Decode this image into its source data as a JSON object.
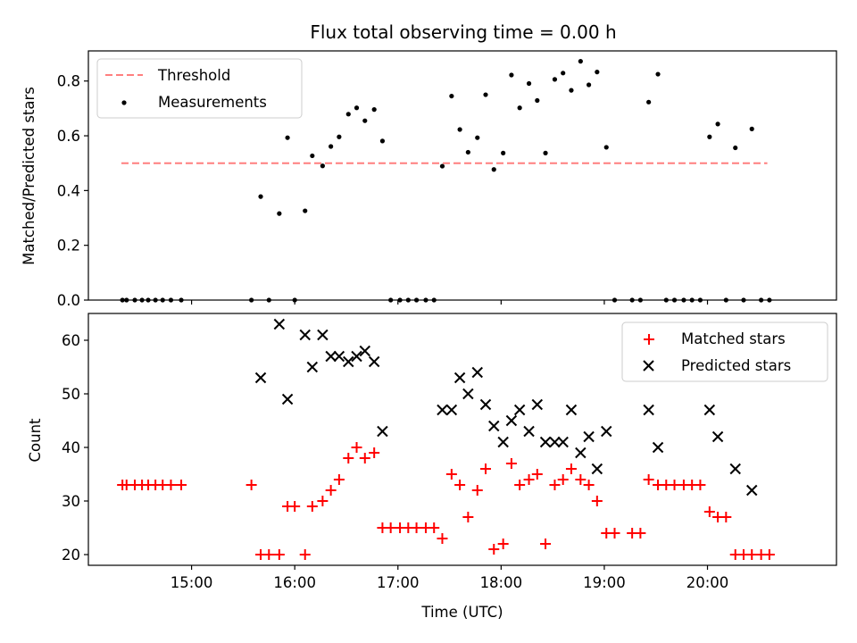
{
  "chart_data": [
    {
      "type": "scatter",
      "title": "Flux total observing time = 0.00 h",
      "xlabel": "",
      "ylabel": "Matched/Predicted stars",
      "xlim": [
        14.0,
        21.25
      ],
      "ylim": [
        0.0,
        0.91
      ],
      "yticks": [
        0.0,
        0.2,
        0.4,
        0.6,
        0.8
      ],
      "ytick_labels": [
        "0.0",
        "0.2",
        "0.4",
        "0.6",
        "0.8"
      ],
      "xticks": [
        15,
        16,
        17,
        18,
        19,
        20
      ],
      "legend_position": "top-left",
      "threshold": {
        "name": "Threshold",
        "value": 0.5,
        "x": [
          14.32,
          20.58
        ],
        "color": "#ff7f7f"
      },
      "series": [
        {
          "name": "Measurements",
          "color": "#000000",
          "points": [
            [
              14.33,
              0.0
            ],
            [
              14.37,
              0.0
            ],
            [
              14.45,
              0.0
            ],
            [
              14.52,
              0.0
            ],
            [
              14.58,
              0.0
            ],
            [
              14.65,
              0.0
            ],
            [
              14.72,
              0.0
            ],
            [
              14.8,
              0.0
            ],
            [
              14.9,
              0.0
            ],
            [
              15.58,
              0.0
            ],
            [
              15.67,
              0.378
            ],
            [
              15.75,
              0.0
            ],
            [
              15.85,
              0.316
            ],
            [
              15.93,
              0.593
            ],
            [
              16.0,
              0.0
            ],
            [
              16.1,
              0.326
            ],
            [
              16.17,
              0.527
            ],
            [
              16.27,
              0.49
            ],
            [
              16.35,
              0.561
            ],
            [
              16.43,
              0.596
            ],
            [
              16.52,
              0.679
            ],
            [
              16.6,
              0.702
            ],
            [
              16.68,
              0.655
            ],
            [
              16.77,
              0.696
            ],
            [
              16.85,
              0.581
            ],
            [
              16.93,
              0.0
            ],
            [
              17.02,
              0.0
            ],
            [
              17.1,
              0.0
            ],
            [
              17.18,
              0.0
            ],
            [
              17.27,
              0.0
            ],
            [
              17.35,
              0.0
            ],
            [
              17.43,
              0.489
            ],
            [
              17.52,
              0.745
            ],
            [
              17.6,
              0.623
            ],
            [
              17.68,
              0.54
            ],
            [
              17.77,
              0.593
            ],
            [
              17.85,
              0.75
            ],
            [
              17.93,
              0.477
            ],
            [
              18.02,
              0.537
            ],
            [
              18.1,
              0.822
            ],
            [
              18.18,
              0.702
            ],
            [
              18.27,
              0.791
            ],
            [
              18.35,
              0.729
            ],
            [
              18.43,
              0.537
            ],
            [
              18.52,
              0.806
            ],
            [
              18.6,
              0.829
            ],
            [
              18.68,
              0.766
            ],
            [
              18.77,
              0.872
            ],
            [
              18.85,
              0.786
            ],
            [
              18.93,
              0.833
            ],
            [
              19.02,
              0.558
            ],
            [
              19.1,
              0.0
            ],
            [
              19.27,
              0.0
            ],
            [
              19.35,
              0.0
            ],
            [
              19.43,
              0.723
            ],
            [
              19.52,
              0.825
            ],
            [
              19.6,
              0.0
            ],
            [
              19.68,
              0.0
            ],
            [
              19.77,
              0.0
            ],
            [
              19.85,
              0.0
            ],
            [
              19.93,
              0.0
            ],
            [
              20.02,
              0.596
            ],
            [
              20.1,
              0.643
            ],
            [
              20.18,
              0.0
            ],
            [
              20.27,
              0.556
            ],
            [
              20.35,
              0.0
            ],
            [
              20.43,
              0.625
            ],
            [
              20.52,
              0.0
            ],
            [
              20.6,
              0.0
            ]
          ]
        }
      ]
    },
    {
      "type": "scatter",
      "title": "",
      "xlabel": "Time (UTC)",
      "ylabel": "Count",
      "xlim": [
        14.0,
        21.25
      ],
      "ylim": [
        18.0,
        65.0
      ],
      "yticks": [
        20,
        30,
        40,
        50,
        60
      ],
      "ytick_labels": [
        "20",
        "30",
        "40",
        "50",
        "60"
      ],
      "xticks": [
        15,
        16,
        17,
        18,
        19,
        20
      ],
      "xtick_labels": [
        "15:00",
        "16:00",
        "17:00",
        "18:00",
        "19:00",
        "20:00"
      ],
      "legend_position": "top-right",
      "series": [
        {
          "name": "Matched stars",
          "marker": "plus",
          "color": "#ff0000",
          "points": [
            [
              14.33,
              33
            ],
            [
              14.37,
              33
            ],
            [
              14.45,
              33
            ],
            [
              14.52,
              33
            ],
            [
              14.58,
              33
            ],
            [
              14.65,
              33
            ],
            [
              14.72,
              33
            ],
            [
              14.8,
              33
            ],
            [
              14.9,
              33
            ],
            [
              15.58,
              33
            ],
            [
              15.67,
              20
            ],
            [
              15.75,
              20
            ],
            [
              15.85,
              20
            ],
            [
              15.93,
              29
            ],
            [
              16.0,
              29
            ],
            [
              16.1,
              20
            ],
            [
              16.17,
              29
            ],
            [
              16.27,
              30
            ],
            [
              16.35,
              32
            ],
            [
              16.43,
              34
            ],
            [
              16.52,
              38
            ],
            [
              16.6,
              40
            ],
            [
              16.68,
              38
            ],
            [
              16.77,
              39
            ],
            [
              16.85,
              25
            ],
            [
              16.93,
              25
            ],
            [
              17.02,
              25
            ],
            [
              17.1,
              25
            ],
            [
              17.18,
              25
            ],
            [
              17.27,
              25
            ],
            [
              17.35,
              25
            ],
            [
              17.43,
              23
            ],
            [
              17.52,
              35
            ],
            [
              17.6,
              33
            ],
            [
              17.68,
              27
            ],
            [
              17.77,
              32
            ],
            [
              17.85,
              36
            ],
            [
              17.93,
              21
            ],
            [
              18.02,
              22
            ],
            [
              18.1,
              37
            ],
            [
              18.18,
              33
            ],
            [
              18.27,
              34
            ],
            [
              18.35,
              35
            ],
            [
              18.43,
              22
            ],
            [
              18.52,
              33
            ],
            [
              18.6,
              34
            ],
            [
              18.68,
              36
            ],
            [
              18.77,
              34
            ],
            [
              18.85,
              33
            ],
            [
              18.93,
              30
            ],
            [
              19.02,
              24
            ],
            [
              19.1,
              24
            ],
            [
              19.27,
              24
            ],
            [
              19.35,
              24
            ],
            [
              19.43,
              34
            ],
            [
              19.52,
              33
            ],
            [
              19.6,
              33
            ],
            [
              19.68,
              33
            ],
            [
              19.77,
              33
            ],
            [
              19.85,
              33
            ],
            [
              19.93,
              33
            ],
            [
              20.02,
              28
            ],
            [
              20.1,
              27
            ],
            [
              20.18,
              27
            ],
            [
              20.27,
              20
            ],
            [
              20.35,
              20
            ],
            [
              20.43,
              20
            ],
            [
              20.52,
              20
            ],
            [
              20.6,
              20
            ]
          ]
        },
        {
          "name": "Predicted stars",
          "marker": "x",
          "color": "#000000",
          "points": [
            [
              15.67,
              53
            ],
            [
              15.85,
              63
            ],
            [
              15.93,
              49
            ],
            [
              16.1,
              61
            ],
            [
              16.17,
              55
            ],
            [
              16.27,
              61
            ],
            [
              16.35,
              57
            ],
            [
              16.43,
              57
            ],
            [
              16.52,
              56
            ],
            [
              16.6,
              57
            ],
            [
              16.68,
              58
            ],
            [
              16.77,
              56
            ],
            [
              16.85,
              43
            ],
            [
              17.43,
              47
            ],
            [
              17.52,
              47
            ],
            [
              17.6,
              53
            ],
            [
              17.68,
              50
            ],
            [
              17.77,
              54
            ],
            [
              17.85,
              48
            ],
            [
              17.93,
              44
            ],
            [
              18.02,
              41
            ],
            [
              18.1,
              45
            ],
            [
              18.18,
              47
            ],
            [
              18.27,
              43
            ],
            [
              18.35,
              48
            ],
            [
              18.43,
              41
            ],
            [
              18.52,
              41
            ],
            [
              18.6,
              41
            ],
            [
              18.68,
              47
            ],
            [
              18.77,
              39
            ],
            [
              18.85,
              42
            ],
            [
              18.93,
              36
            ],
            [
              19.02,
              43
            ],
            [
              19.43,
              47
            ],
            [
              19.52,
              40
            ],
            [
              20.02,
              47
            ],
            [
              20.1,
              42
            ],
            [
              20.27,
              36
            ],
            [
              20.43,
              32
            ]
          ]
        }
      ]
    }
  ]
}
